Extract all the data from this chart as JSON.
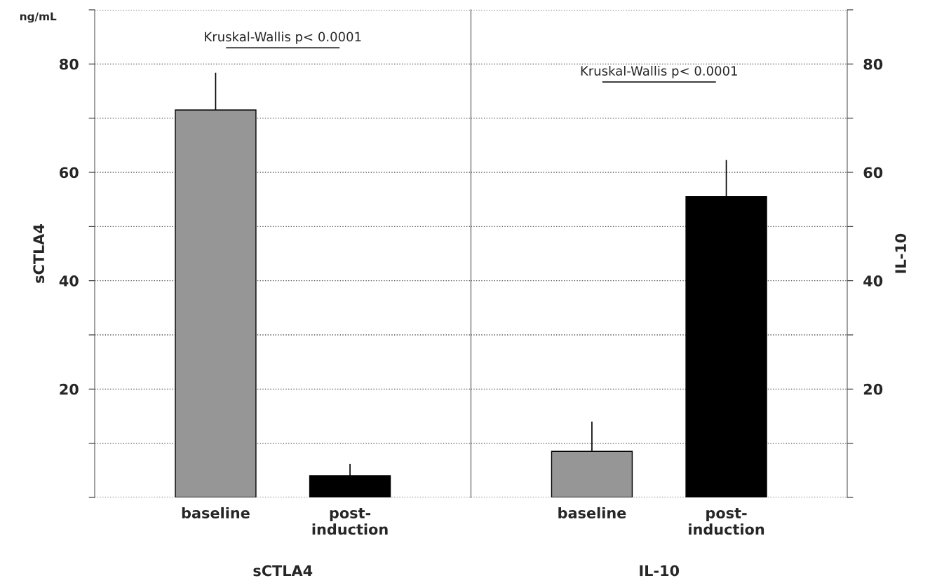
{
  "chart_data": [
    {
      "type": "bar",
      "categories": [
        "baseline",
        "post-\ninduction"
      ],
      "xlabel": "sCTLA4",
      "ylabel": "sCTLA4",
      "ylim": [
        0,
        90
      ],
      "yticks": [
        {
          "value": 0,
          "label": null
        },
        {
          "value": 10,
          "label": null
        },
        20,
        {
          "value": 30,
          "label": null
        },
        40,
        {
          "value": 50,
          "label": null
        },
        60,
        {
          "value": 70,
          "label": null
        },
        80,
        {
          "value": 90,
          "label": null
        }
      ],
      "values": [
        71.5,
        4.0
      ],
      "colors": [
        "#969696",
        "#000000"
      ],
      "errors": [
        [
          71.5,
          78.4
        ],
        [
          4.0,
          6.2
        ]
      ],
      "grid": "y",
      "annotations": [
        "ng/mL",
        "Kruskal-Wallis p< 0.0001"
      ]
    },
    {
      "type": "bar",
      "categories": [
        "baseline",
        "post-\ninduction"
      ],
      "xlabel": "IL-10",
      "y2label": "IL-10",
      "y2lim": [
        0,
        90
      ],
      "y2ticks": [
        {
          "value": 0,
          "label": null
        },
        {
          "value": 10,
          "label": null
        },
        20,
        {
          "value": 30,
          "label": null
        },
        40,
        {
          "value": 50,
          "label": null
        },
        60,
        {
          "value": 70,
          "label": null
        },
        80,
        {
          "value": 90,
          "label": null
        }
      ],
      "series": [
        {
          "axis": "y2",
          "values": [
            8.5,
            55.5
          ],
          "colors": [
            "#969696",
            "#000000"
          ],
          "errors": [
            [
              8.5,
              14.0
            ],
            [
              55.5,
              62.3
            ]
          ]
        }
      ],
      "grid": "y",
      "annotations": [
        "Kruskal-Wallis p< 0.0001"
      ]
    }
  ]
}
